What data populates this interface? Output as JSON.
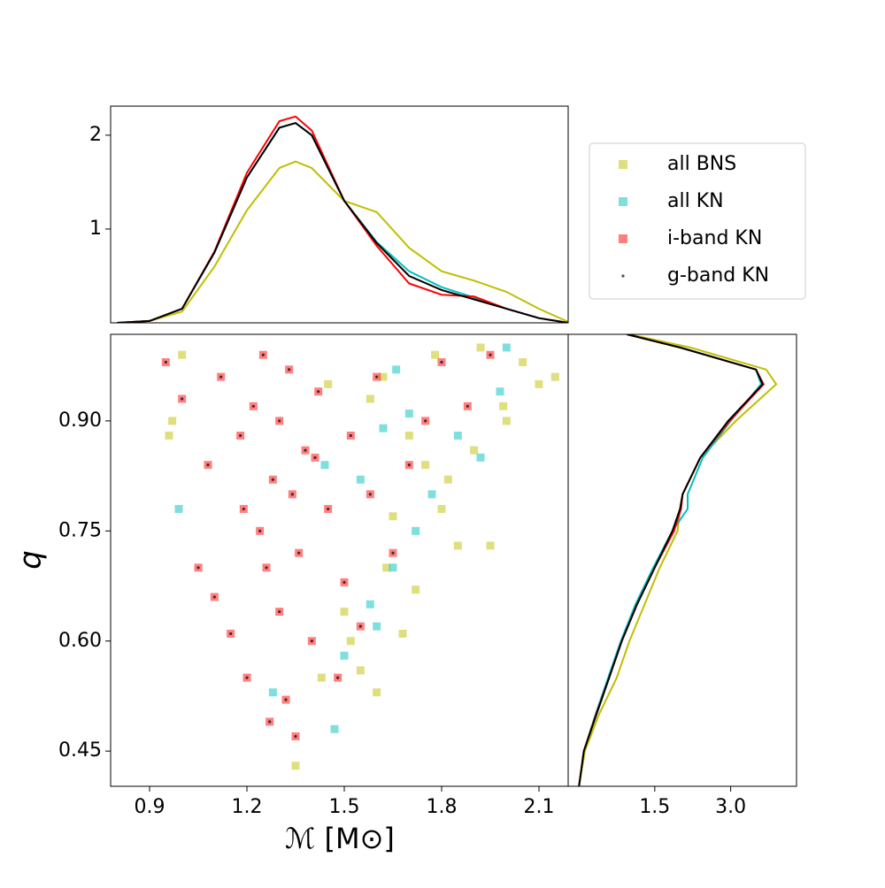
{
  "chart_data": [
    {
      "type": "line",
      "x": [
        0.8,
        0.9,
        1.0,
        1.1,
        1.2,
        1.3,
        1.35,
        1.4,
        1.5,
        1.6,
        1.7,
        1.8,
        1.9,
        2.0,
        2.1,
        2.19
      ],
      "series": [
        {
          "name": "all BNS",
          "color": "#bfbf00",
          "values": [
            0,
            0.02,
            0.12,
            0.6,
            1.2,
            1.65,
            1.72,
            1.65,
            1.3,
            1.18,
            0.8,
            0.55,
            0.45,
            0.33,
            0.15,
            0.01
          ]
        },
        {
          "name": "all KN",
          "color": "#00bfbf",
          "values": [
            0,
            0.02,
            0.15,
            0.75,
            1.55,
            2.08,
            2.13,
            2.0,
            1.3,
            0.86,
            0.55,
            0.38,
            0.27,
            0.15,
            0.05,
            0
          ]
        },
        {
          "name": "i-band KN",
          "color": "#ff0000",
          "values": [
            0,
            0.02,
            0.15,
            0.76,
            1.6,
            2.15,
            2.2,
            2.05,
            1.3,
            0.82,
            0.42,
            0.3,
            0.28,
            0.15,
            0.05,
            0
          ]
        },
        {
          "name": "g-band KN",
          "color": "#000000",
          "values": [
            0,
            0.02,
            0.15,
            0.75,
            1.55,
            2.08,
            2.13,
            2.0,
            1.3,
            0.85,
            0.5,
            0.35,
            0.25,
            0.15,
            0.05,
            0
          ]
        }
      ],
      "xlim": [
        0.78,
        2.19
      ],
      "ylim": [
        0,
        2.31
      ],
      "yticks": [
        1,
        2
      ]
    },
    {
      "type": "scatter",
      "xlabel": "ℳ [M⊙]",
      "ylabel": "q",
      "legend": "upper right",
      "series": [
        {
          "name": "all BNS",
          "color": "#bfbf00",
          "marker": "square",
          "x": [
            1.35,
            1.6,
            1.72,
            1.85,
            1.95,
            2.05,
            2.1,
            2.15,
            1.99,
            1.8,
            1.68,
            1.75,
            1.9,
            1.63,
            1.55,
            0.96,
            0.97,
            1.0,
            1.45,
            1.58,
            1.7,
            1.82,
            2.0,
            1.65,
            1.5,
            1.62,
            1.78,
            1.92,
            1.43,
            1.52
          ],
          "values": [
            0.43,
            0.53,
            0.67,
            0.73,
            0.73,
            0.98,
            0.95,
            0.96,
            0.92,
            0.78,
            0.61,
            0.84,
            0.86,
            0.7,
            0.56,
            0.88,
            0.9,
            0.99,
            0.95,
            0.93,
            0.88,
            0.82,
            0.9,
            0.77,
            0.64,
            0.96,
            0.99,
            1.0,
            0.55,
            0.6
          ]
        },
        {
          "name": "all KN",
          "color": "#00bfbf",
          "marker": "square",
          "x": [
            0.99,
            1.28,
            1.47,
            1.58,
            1.65,
            1.72,
            1.77,
            1.85,
            1.92,
            1.98,
            2.0,
            1.55,
            1.62,
            1.7,
            1.6,
            1.5,
            1.44,
            1.66
          ],
          "values": [
            0.78,
            0.53,
            0.48,
            0.65,
            0.7,
            0.75,
            0.8,
            0.88,
            0.85,
            0.94,
            1.0,
            0.82,
            0.89,
            0.91,
            0.62,
            0.58,
            0.84,
            0.97
          ]
        },
        {
          "name": "i-band KN",
          "color": "#ff0000",
          "marker": "square",
          "x": [
            0.95,
            1.0,
            1.05,
            1.08,
            1.1,
            1.12,
            1.15,
            1.18,
            1.2,
            1.22,
            1.24,
            1.25,
            1.27,
            1.28,
            1.3,
            1.3,
            1.32,
            1.33,
            1.35,
            1.36,
            1.38,
            1.4,
            1.42,
            1.45,
            1.48,
            1.5,
            1.52,
            1.55,
            1.58,
            1.6,
            1.65,
            1.7,
            1.75,
            1.8,
            1.88,
            1.95,
            1.26,
            1.34,
            1.19,
            1.41
          ],
          "values": [
            0.98,
            0.93,
            0.7,
            0.84,
            0.66,
            0.96,
            0.61,
            0.88,
            0.55,
            0.92,
            0.75,
            0.99,
            0.49,
            0.82,
            0.64,
            0.9,
            0.52,
            0.97,
            0.47,
            0.72,
            0.86,
            0.6,
            0.94,
            0.78,
            0.55,
            0.68,
            0.88,
            0.62,
            0.8,
            0.96,
            0.72,
            0.84,
            0.9,
            0.98,
            0.92,
            0.99,
            0.7,
            0.8,
            0.78,
            0.85
          ]
        },
        {
          "name": "g-band KN",
          "color": "#000000",
          "marker": "dot",
          "x": [
            0.95,
            1.0,
            1.05,
            1.08,
            1.1,
            1.12,
            1.15,
            1.18,
            1.2,
            1.22,
            1.24,
            1.25,
            1.27,
            1.28,
            1.3,
            1.3,
            1.32,
            1.33,
            1.35,
            1.36,
            1.38,
            1.4,
            1.42,
            1.45,
            1.48,
            1.5,
            1.52,
            1.55,
            1.58,
            1.6,
            1.65,
            1.7,
            1.75,
            1.8,
            1.88,
            1.95,
            1.26,
            1.34,
            1.19,
            1.41
          ],
          "values": [
            0.98,
            0.93,
            0.7,
            0.84,
            0.66,
            0.96,
            0.61,
            0.88,
            0.55,
            0.92,
            0.75,
            0.99,
            0.49,
            0.82,
            0.64,
            0.9,
            0.52,
            0.97,
            0.47,
            0.72,
            0.86,
            0.6,
            0.94,
            0.78,
            0.55,
            0.68,
            0.88,
            0.62,
            0.8,
            0.96,
            0.72,
            0.84,
            0.9,
            0.98,
            0.92,
            0.99,
            0.7,
            0.8,
            0.78,
            0.85
          ]
        }
      ],
      "xlim": [
        0.78,
        2.19
      ],
      "xticks": [
        0.9,
        1.2,
        1.5,
        1.8,
        2.1
      ],
      "ylim": [
        0.402,
        1.018
      ],
      "yticks": [
        {
          "value": 0.45,
          "label": "0.45"
        },
        {
          "value": 0.6,
          "label": "0.60"
        },
        {
          "value": 0.75,
          "label": "0.75"
        },
        {
          "value": 0.9,
          "label": "0.90"
        }
      ]
    },
    {
      "type": "line",
      "orientation": "horizontal",
      "y": [
        0.4,
        0.45,
        0.5,
        0.55,
        0.6,
        0.65,
        0.7,
        0.75,
        0.78,
        0.8,
        0.85,
        0.9,
        0.95,
        0.97,
        1.0,
        1.018
      ],
      "series": [
        {
          "name": "all BNS",
          "color": "#bfbf00",
          "values": [
            0,
            0.12,
            0.4,
            0.75,
            1.0,
            1.3,
            1.6,
            1.95,
            2.0,
            2.05,
            2.4,
            3.1,
            3.9,
            3.7,
            2.2,
            1.0
          ]
        },
        {
          "name": "all KN",
          "color": "#00bfbf",
          "values": [
            0,
            0.1,
            0.33,
            0.58,
            0.83,
            1.12,
            1.47,
            1.85,
            2.15,
            2.15,
            2.45,
            3.0,
            3.6,
            3.5,
            2.0,
            0.95
          ]
        },
        {
          "name": "i-band KN",
          "color": "#ff0000",
          "values": [
            0,
            0.1,
            0.34,
            0.6,
            0.85,
            1.15,
            1.5,
            1.88,
            2.02,
            2.05,
            2.4,
            2.98,
            3.65,
            3.5,
            2.0,
            0.95
          ]
        },
        {
          "name": "g-band KN",
          "color": "#000000",
          "values": [
            0,
            0.1,
            0.35,
            0.6,
            0.85,
            1.15,
            1.5,
            1.85,
            2.0,
            2.05,
            2.4,
            2.95,
            3.63,
            3.5,
            2.0,
            0.95
          ]
        }
      ],
      "xlim": [
        -0.21,
        4.3
      ],
      "xticks": [
        1.5,
        {
          "value": 3.0,
          "label": "3.0"
        }
      ],
      "ylim": [
        0.402,
        1.018
      ]
    }
  ]
}
